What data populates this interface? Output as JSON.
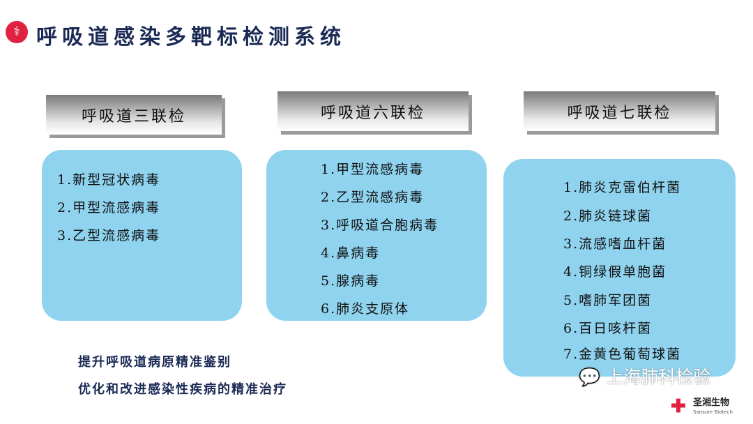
{
  "title": "呼吸道感染多靶标检测系统",
  "logo_icon": "dna-icon",
  "panels": [
    {
      "header": "呼吸道三联检",
      "items": [
        "1.新型冠状病毒",
        "2.甲型流感病毒",
        "3.乙型流感病毒"
      ]
    },
    {
      "header": "呼吸道六联检",
      "items": [
        "1.甲型流感病毒",
        "2.乙型流感病毒",
        "3.呼吸道合胞病毒",
        "4.鼻病毒",
        "5.腺病毒",
        "6.肺炎支原体"
      ]
    },
    {
      "header": "呼吸道七联检",
      "items": [
        "1.肺炎克雷伯杆菌",
        "2.肺炎链球菌",
        "3.流感嗜血杆菌",
        "4.铜绿假单胞菌",
        "5.嗜肺军团菌",
        "6.百日咳杆菌",
        "7.金黄色葡萄球菌"
      ]
    }
  ],
  "bottom": [
    "提升呼吸道病原精准鉴别",
    "优化和改进感染性疾病的精准治疗"
  ],
  "watermark": "上海肺科检验",
  "brand": {
    "cn": "圣湘生物",
    "en": "Sansure Biotech"
  },
  "colors": {
    "box": "#8fd3ef",
    "title": "#1b2a55",
    "accent": "#e0213f"
  }
}
